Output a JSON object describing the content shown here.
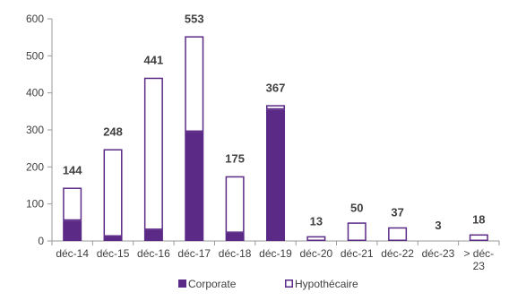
{
  "chart_data": {
    "type": "bar",
    "stacked": true,
    "categories": [
      "déc-14",
      "déc-15",
      "déc-16",
      "déc-17",
      "déc-18",
      "déc-19",
      "déc-20",
      "déc-21",
      "déc-22",
      "déc-23",
      "> déc-23"
    ],
    "series": [
      {
        "name": "Corporate",
        "color": "#5b2a86",
        "fill": "solid",
        "values": [
          55,
          12,
          30,
          295,
          22,
          355,
          0,
          0,
          0,
          0,
          0
        ]
      },
      {
        "name": "Hypothécaire",
        "color": "#5b2a86",
        "fill": "outline",
        "values": [
          89,
          236,
          411,
          258,
          153,
          12,
          13,
          50,
          37,
          3,
          18
        ]
      }
    ],
    "totals": [
      144,
      248,
      441,
      553,
      175,
      367,
      13,
      50,
      37,
      3,
      18
    ],
    "ylim": [
      0,
      600
    ],
    "yticks": [
      0,
      100,
      200,
      300,
      400,
      500,
      600
    ],
    "ytick_labels": [
      "0",
      "100",
      "200",
      "300",
      "400",
      "500",
      "600"
    ],
    "grid": false,
    "legend_position": "bottom",
    "title": "",
    "xlabel": "",
    "ylabel": ""
  }
}
